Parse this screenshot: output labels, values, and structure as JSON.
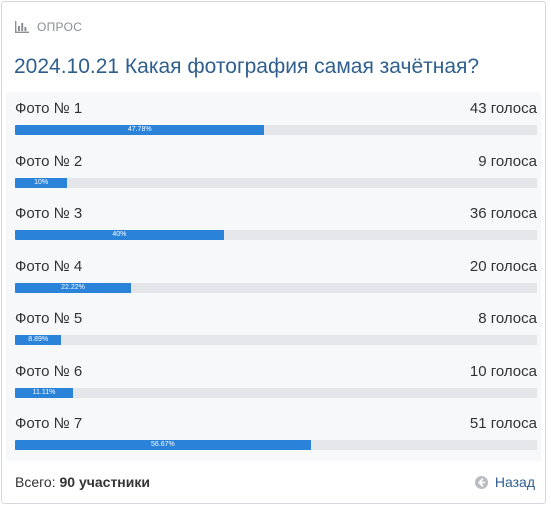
{
  "poll": {
    "label": "ОПРОС",
    "icon": "bar-chart-icon",
    "title": "2024.10.21 Какая фотография самая зачётная?",
    "accent_color": "#2b82d9",
    "options": [
      {
        "label": "Фото № 1",
        "votes": "43 голоса",
        "percent_label": "47.78%",
        "percent": 47.78
      },
      {
        "label": "Фото № 2",
        "votes": "9 голоса",
        "percent_label": "10%",
        "percent": 10
      },
      {
        "label": "Фото № 3",
        "votes": "36 голоса",
        "percent_label": "40%",
        "percent": 40
      },
      {
        "label": "Фото № 4",
        "votes": "20 голоса",
        "percent_label": "22.22%",
        "percent": 22.22
      },
      {
        "label": "Фото № 5",
        "votes": "8 голоса",
        "percent_label": "8.89%",
        "percent": 8.89
      },
      {
        "label": "Фото № 6",
        "votes": "10 голоса",
        "percent_label": "11.11%",
        "percent": 11.11
      },
      {
        "label": "Фото № 7",
        "votes": "51 голоса",
        "percent_label": "56.67%",
        "percent": 56.67
      }
    ]
  },
  "footer": {
    "total_prefix": "Всего:",
    "total_value": "90 участники",
    "back_label": "Назад",
    "back_icon": "arrow-left-circle-icon"
  }
}
